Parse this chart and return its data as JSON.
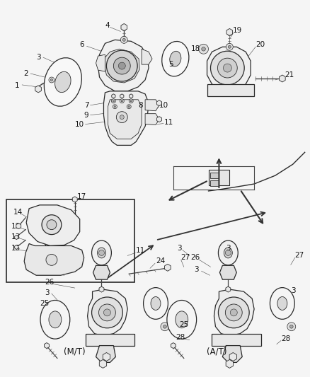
{
  "bg_color": "#f0f0f0",
  "line_color": "#2a2a2a",
  "label_color": "#111111",
  "figsize": [
    4.38,
    5.33
  ],
  "dpi": 100
}
